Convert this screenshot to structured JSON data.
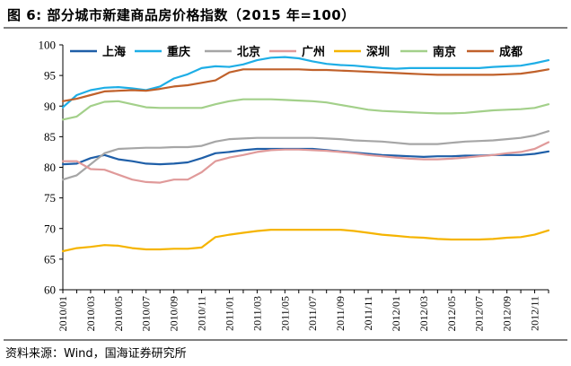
{
  "header": {
    "title": "图 6:  部分城市新建商品房价格指数（2015 年=100）"
  },
  "footer": {
    "source": "资料来源：Wind，国海证券研究所"
  },
  "chart_data": {
    "type": "line",
    "title": "部分城市新建商品房价格指数（2015 年=100）",
    "xlabel": "",
    "ylabel": "",
    "ylim": [
      60,
      100
    ],
    "yticks": [
      60,
      65,
      70,
      75,
      80,
      85,
      90,
      95,
      100
    ],
    "grid": false,
    "legend_position": "top",
    "x": [
      "2010/01",
      "2010/02",
      "2010/03",
      "2010/04",
      "2010/05",
      "2010/06",
      "2010/07",
      "2010/08",
      "2010/09",
      "2010/10",
      "2010/11",
      "2010/12",
      "2011/01",
      "2011/02",
      "2011/03",
      "2011/04",
      "2011/05",
      "2011/06",
      "2011/07",
      "2011/08",
      "2011/09",
      "2011/10",
      "2011/11",
      "2011/12",
      "2012/01",
      "2012/02",
      "2012/03",
      "2012/04",
      "2012/05",
      "2012/06",
      "2012/07",
      "2012/08",
      "2012/09",
      "2012/10",
      "2012/11",
      "2012/12"
    ],
    "xtick_labels": [
      "2010/01",
      "2010/03",
      "2010/05",
      "2010/07",
      "2010/09",
      "2010/11",
      "2011/01",
      "2011/03",
      "2011/05",
      "2011/07",
      "2011/09",
      "2011/11",
      "2012/01",
      "2012/03",
      "2012/05",
      "2012/07",
      "2012/09",
      "2012/11"
    ],
    "series": [
      {
        "name": "上海",
        "color": "#1f5fa8",
        "values": [
          80.5,
          80.6,
          81.5,
          82.0,
          81.3,
          81.0,
          80.6,
          80.5,
          80.6,
          80.8,
          81.5,
          82.3,
          82.5,
          82.8,
          83.0,
          83.0,
          83.0,
          83.0,
          83.0,
          82.8,
          82.6,
          82.4,
          82.2,
          82.0,
          81.9,
          81.8,
          81.7,
          81.8,
          81.8,
          81.9,
          81.9,
          82.0,
          82.0,
          82.0,
          82.2,
          82.6
        ]
      },
      {
        "name": "重庆",
        "color": "#1eaee6",
        "values": [
          89.8,
          91.8,
          92.6,
          93.0,
          93.1,
          92.9,
          92.6,
          93.2,
          94.5,
          95.2,
          96.2,
          96.5,
          96.4,
          96.8,
          97.5,
          97.9,
          98.0,
          97.8,
          97.3,
          96.9,
          96.7,
          96.6,
          96.4,
          96.2,
          96.1,
          96.2,
          96.2,
          96.2,
          96.2,
          96.2,
          96.2,
          96.4,
          96.5,
          96.6,
          97.0,
          97.5
        ]
      },
      {
        "name": "北京",
        "color": "#a6a6a6",
        "values": [
          78.0,
          78.7,
          80.5,
          82.3,
          83.0,
          83.1,
          83.2,
          83.2,
          83.3,
          83.3,
          83.5,
          84.2,
          84.6,
          84.7,
          84.8,
          84.8,
          84.8,
          84.8,
          84.8,
          84.7,
          84.6,
          84.4,
          84.3,
          84.2,
          84.0,
          83.8,
          83.8,
          83.8,
          84.0,
          84.2,
          84.3,
          84.4,
          84.6,
          84.8,
          85.2,
          85.9
        ]
      },
      {
        "name": "广州",
        "color": "#e09a9a",
        "values": [
          81.0,
          81.0,
          79.7,
          79.6,
          78.8,
          78.0,
          77.6,
          77.5,
          78.0,
          78.0,
          79.2,
          81.0,
          81.6,
          82.0,
          82.5,
          82.8,
          82.9,
          82.9,
          82.8,
          82.7,
          82.5,
          82.3,
          82.0,
          81.8,
          81.6,
          81.4,
          81.3,
          81.3,
          81.4,
          81.6,
          81.8,
          82.0,
          82.3,
          82.5,
          83.0,
          84.1
        ]
      },
      {
        "name": "深圳",
        "color": "#f5b400",
        "values": [
          66.3,
          66.8,
          67.0,
          67.3,
          67.2,
          66.8,
          66.6,
          66.6,
          66.7,
          66.7,
          66.9,
          68.6,
          69.0,
          69.3,
          69.6,
          69.8,
          69.8,
          69.8,
          69.8,
          69.8,
          69.8,
          69.6,
          69.3,
          69.0,
          68.8,
          68.6,
          68.5,
          68.3,
          68.2,
          68.2,
          68.2,
          68.3,
          68.5,
          68.6,
          69.0,
          69.7
        ]
      },
      {
        "name": "南京",
        "color": "#a3d08a",
        "values": [
          87.8,
          88.3,
          90.0,
          90.7,
          90.8,
          90.3,
          89.8,
          89.7,
          89.7,
          89.7,
          89.7,
          90.3,
          90.8,
          91.1,
          91.1,
          91.1,
          91.0,
          90.9,
          90.8,
          90.6,
          90.2,
          89.8,
          89.4,
          89.2,
          89.1,
          89.0,
          88.9,
          88.8,
          88.8,
          88.9,
          89.1,
          89.3,
          89.4,
          89.5,
          89.7,
          90.3
        ]
      },
      {
        "name": "成都",
        "color": "#c0612b",
        "values": [
          90.8,
          91.2,
          91.8,
          92.4,
          92.5,
          92.6,
          92.5,
          92.8,
          93.2,
          93.4,
          93.8,
          94.2,
          95.5,
          96.0,
          96.0,
          96.0,
          96.0,
          96.0,
          95.9,
          95.9,
          95.8,
          95.7,
          95.6,
          95.5,
          95.4,
          95.3,
          95.2,
          95.1,
          95.1,
          95.1,
          95.1,
          95.1,
          95.2,
          95.3,
          95.6,
          96.0
        ]
      }
    ]
  }
}
